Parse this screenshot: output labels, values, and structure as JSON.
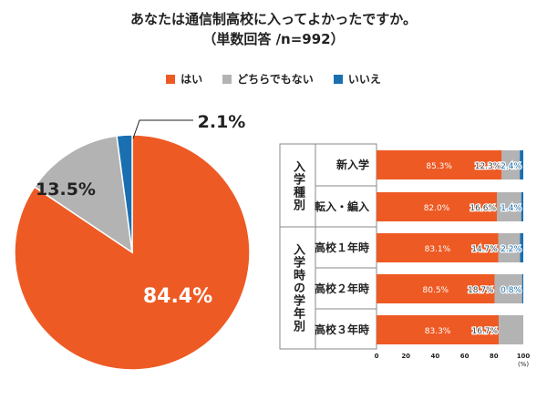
{
  "title_line1": "あなたは通信制高校に入ってよかったですか。",
  "title_line2": "（単数回答 /n=992）",
  "legend": [
    {
      "label": "はい",
      "color": "#ee5a24"
    },
    {
      "label": "どちらでもない",
      "color": "#b3b3b3"
    },
    {
      "label": "いいえ",
      "color": "#1a6fb0"
    }
  ],
  "chart_data": [
    {
      "type": "pie",
      "series": [
        "はい",
        "どちらでもない",
        "いいえ"
      ],
      "values": [
        84.4,
        13.5,
        2.1
      ],
      "labels": [
        "84.4%",
        "13.5%",
        "2.1%"
      ]
    },
    {
      "type": "bar",
      "orientation": "horizontal",
      "stacked": true,
      "groups": [
        {
          "label": "入学種別",
          "rows": [
            "新入学",
            "転入・編入"
          ]
        },
        {
          "label": "入学時の学年別",
          "rows": [
            "高校１年時",
            "高校２年時",
            "高校３年時"
          ]
        }
      ],
      "categories": [
        "新入学",
        "転入・編入",
        "高校１年時",
        "高校２年時",
        "高校３年時"
      ],
      "series": [
        {
          "name": "はい",
          "values": [
            85.3,
            82.0,
            83.1,
            80.5,
            83.3
          ]
        },
        {
          "name": "どちらでもない",
          "values": [
            12.3,
            16.6,
            14.7,
            18.7,
            16.7
          ]
        },
        {
          "name": "いいえ",
          "values": [
            2.4,
            1.4,
            2.2,
            0.8,
            null
          ]
        }
      ],
      "xlim": [
        0,
        100
      ],
      "xticks": [
        "0",
        "20",
        "40",
        "60",
        "80",
        "100"
      ],
      "xunit": "(%)"
    }
  ]
}
